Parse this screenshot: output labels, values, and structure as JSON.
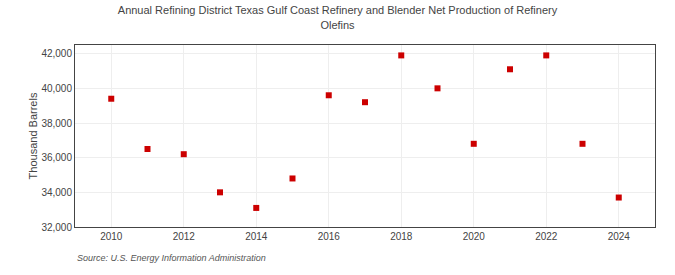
{
  "chart_data": {
    "type": "scatter",
    "title": "Annual Refining District Texas Gulf Coast Refinery and Blender Net Production of Refinery\nOlefins",
    "ylabel": "Thousand Barrels",
    "annotations": [
      "Source: U.S. Energy Information Administration"
    ],
    "x": [
      2010,
      2011,
      2012,
      2013,
      2014,
      2015,
      2016,
      2017,
      2018,
      2019,
      2020,
      2021,
      2022,
      2023,
      2024
    ],
    "values": [
      39400,
      36500,
      36200,
      34000,
      33100,
      34800,
      39600,
      39200,
      41900,
      40000,
      36800,
      41100,
      41900,
      36800,
      33700
    ],
    "color": "#cc0000",
    "marker": "square",
    "xlim": [
      2009,
      2025
    ],
    "xticks": [
      2010,
      2012,
      2014,
      2016,
      2018,
      2020,
      2022,
      2024
    ],
    "ylim": [
      32000,
      42500
    ],
    "yticks": [
      {
        "value": 32000,
        "label": "32,000"
      },
      {
        "value": 34000,
        "label": "34,000"
      },
      {
        "value": 36000,
        "label": "36,000"
      },
      {
        "value": 38000,
        "label": "38,000"
      },
      {
        "value": 40000,
        "label": "40,000"
      },
      {
        "value": 42000,
        "label": "42,000"
      }
    ],
    "grid": true
  }
}
